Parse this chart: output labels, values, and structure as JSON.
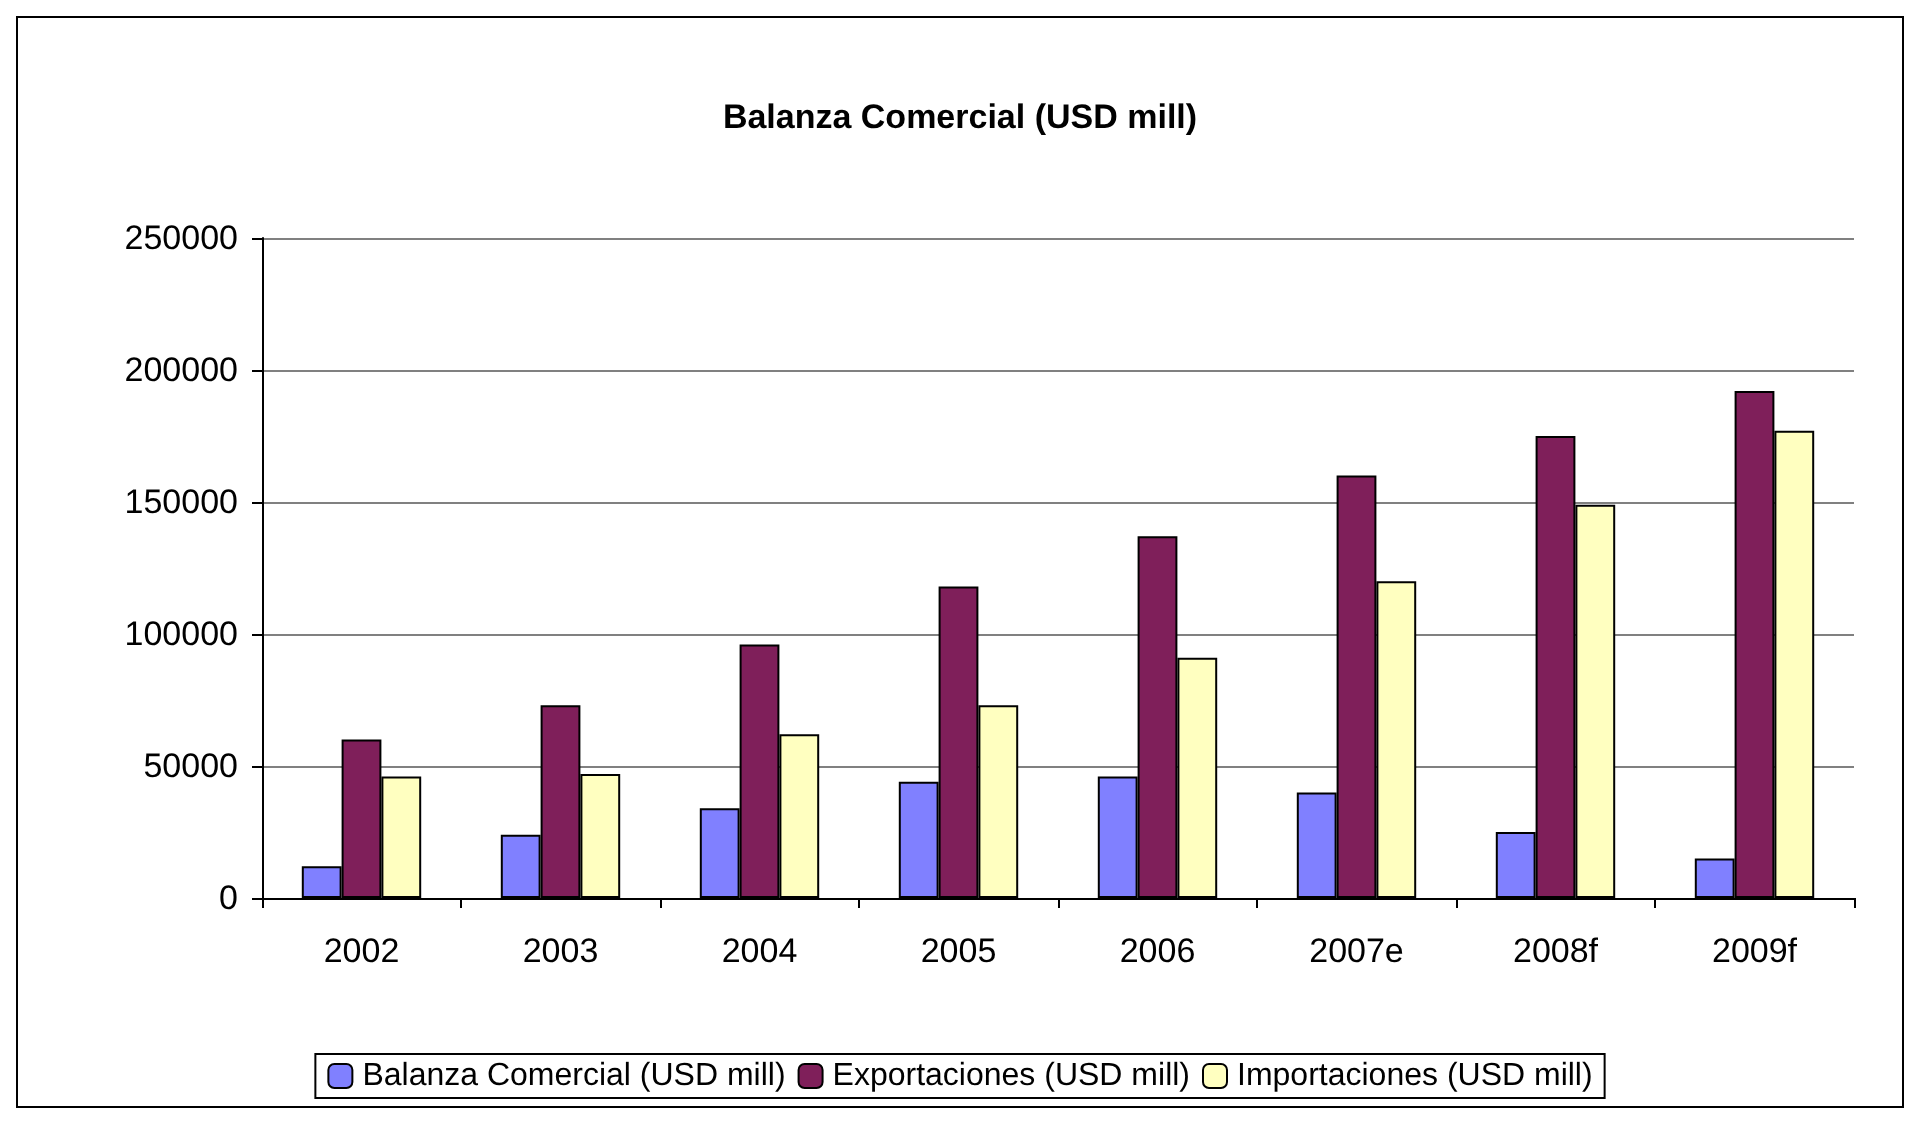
{
  "chart_data": {
    "type": "bar",
    "title": "Balanza Comercial (USD mill)",
    "categories": [
      "2002",
      "2003",
      "2004",
      "2005",
      "2006",
      "2007e",
      "2008f",
      "2009f"
    ],
    "series": [
      {
        "name": "Balanza Comercial (USD mill)",
        "color": "#8080ff",
        "values": [
          12000,
          24000,
          34000,
          44000,
          46000,
          40000,
          25000,
          15000
        ]
      },
      {
        "name": "Exportaciones (USD mill)",
        "color": "#7f1f5a",
        "values": [
          60000,
          73000,
          96000,
          118000,
          137000,
          160000,
          175000,
          192000
        ]
      },
      {
        "name": "Importaciones (USD mill)",
        "color": "#ffffc0",
        "values": [
          46000,
          47000,
          62000,
          73000,
          91000,
          120000,
          149000,
          177000
        ]
      }
    ],
    "ylim": [
      0,
      250000
    ],
    "yticks": [
      0,
      50000,
      100000,
      150000,
      200000,
      250000
    ],
    "grid": "y",
    "legend": "bottom"
  }
}
